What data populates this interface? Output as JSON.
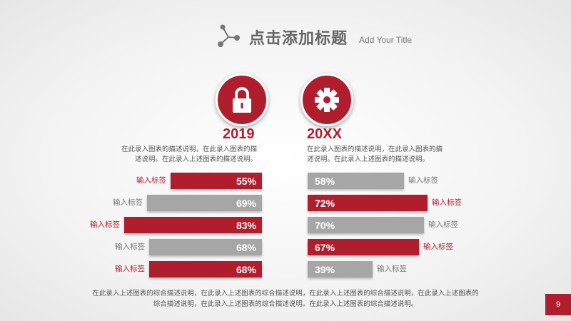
{
  "header": {
    "title": "点击添加标题",
    "subtitle": "Add Your Title"
  },
  "colors": {
    "accent": "#b01e2d",
    "neutral": "#a6a6a6"
  },
  "panels": [
    {
      "icon": "lock-icon",
      "year": "2019",
      "desc_line1": "在此录入图表的描述说明，在此录入图表的描",
      "desc_line2": "述说明。在此录入上述图表的描述说明。"
    },
    {
      "icon": "gear-icon",
      "year": "20XX",
      "desc_line1": "在此录入图表的描述说明，在此录入图表的描",
      "desc_line2": "述说明。在此录入上述图表的描述说明。"
    }
  ],
  "chart_data": [
    {
      "type": "bar",
      "orientation": "horizontal",
      "title": "2019",
      "categories": [
        "输入标签",
        "输入标签",
        "输入标签",
        "输入标签",
        "输入标签"
      ],
      "values": [
        55,
        69,
        83,
        68,
        68
      ],
      "value_labels": [
        "55%",
        "69%",
        "83%",
        "68%",
        "68%"
      ],
      "highlight": [
        true,
        false,
        true,
        false,
        true
      ],
      "xlim": [
        0,
        100
      ]
    },
    {
      "type": "bar",
      "orientation": "horizontal",
      "title": "20XX",
      "categories": [
        "输入标签",
        "输入标签",
        "输入标签",
        "输入标签",
        "输入标签"
      ],
      "values": [
        58,
        72,
        70,
        67,
        39
      ],
      "value_labels": [
        "58%",
        "72%",
        "70%",
        "67%",
        "39%"
      ],
      "highlight": [
        false,
        true,
        false,
        true,
        false
      ],
      "xlim": [
        0,
        100
      ]
    }
  ],
  "footer": {
    "line1": "在此录入上述图表的综合描述说明，在此录入上述图表的综合描述说明，在此录入上述图表的综合描述说明，在此录入上述图表的",
    "line2": "综合描述说明，在此录入上述图表的综合描述说明。在此录入上述图表的综合描述说明。"
  },
  "page_number": "9"
}
